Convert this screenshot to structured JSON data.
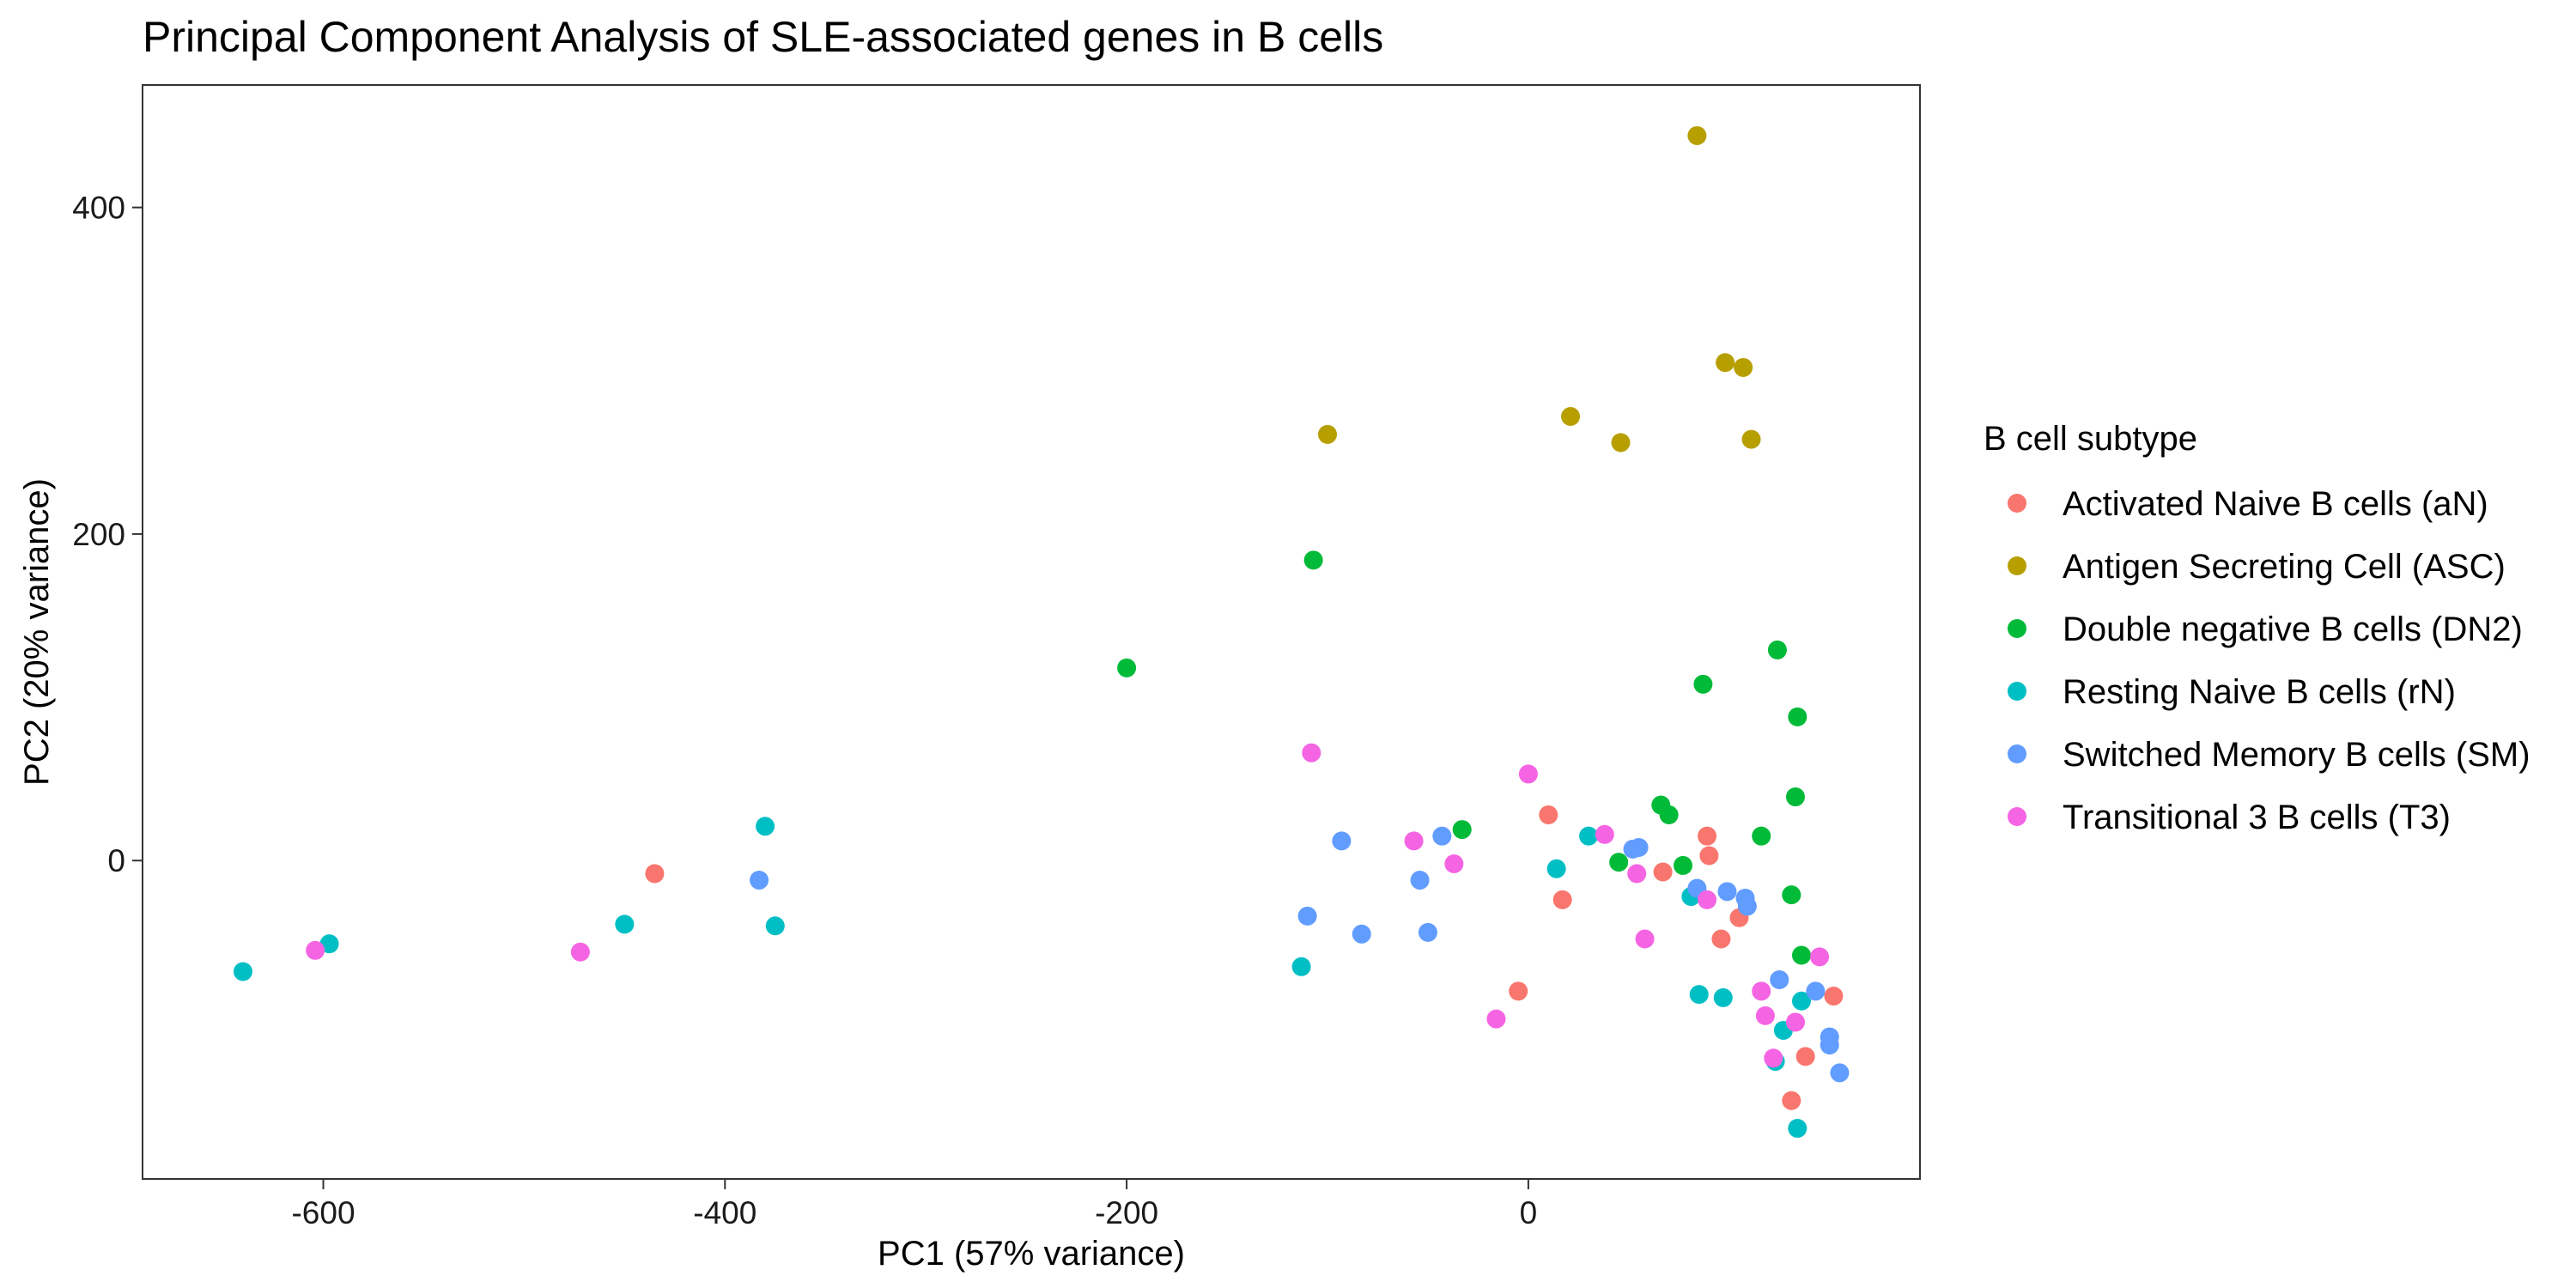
{
  "chart_data": {
    "type": "scatter",
    "title": "Principal Component Analysis of SLE-associated genes in B cells",
    "xlabel": "PC1 (57% variance)",
    "ylabel": "PC2 (20% variance)",
    "xlim": [
      -690,
      195
    ],
    "ylim": [
      -195,
      475
    ],
    "xticks": [
      -600,
      -400,
      -200,
      0
    ],
    "yticks": [
      0,
      200,
      400
    ],
    "grid": false,
    "legend": {
      "title": "B cell subtype",
      "placement": "right"
    },
    "series": [
      {
        "name": "Activated Naive B cells (aN)",
        "color": "#F8766D",
        "points": [
          {
            "x": -435,
            "y": -8
          },
          {
            "x": 10,
            "y": 28
          },
          {
            "x": 17,
            "y": -24
          },
          {
            "x": -5,
            "y": -80
          },
          {
            "x": 67,
            "y": -7
          },
          {
            "x": 89,
            "y": 15
          },
          {
            "x": 90,
            "y": 3
          },
          {
            "x": 96,
            "y": -48
          },
          {
            "x": 105,
            "y": -35
          },
          {
            "x": 131,
            "y": -147
          },
          {
            "x": 138,
            "y": -120
          },
          {
            "x": 152,
            "y": -83
          }
        ]
      },
      {
        "name": "Antigen Secreting Cell (ASC)",
        "color": "#B79F00",
        "points": [
          {
            "x": -100,
            "y": 261
          },
          {
            "x": 21,
            "y": 272
          },
          {
            "x": 46,
            "y": 256
          },
          {
            "x": 84,
            "y": 444
          },
          {
            "x": 98,
            "y": 305
          },
          {
            "x": 107,
            "y": 302
          },
          {
            "x": 111,
            "y": 258
          }
        ]
      },
      {
        "name": "Double negative B cells (DN2)",
        "color": "#00BA38",
        "points": [
          {
            "x": -200,
            "y": 118
          },
          {
            "x": -107,
            "y": 184
          },
          {
            "x": -33,
            "y": 19
          },
          {
            "x": 45,
            "y": -1
          },
          {
            "x": 66,
            "y": 34
          },
          {
            "x": 70,
            "y": 28
          },
          {
            "x": 77,
            "y": -3
          },
          {
            "x": 87,
            "y": 108
          },
          {
            "x": 116,
            "y": 15
          },
          {
            "x": 124,
            "y": 129
          },
          {
            "x": 131,
            "y": -21
          },
          {
            "x": 133,
            "y": 39
          },
          {
            "x": 134,
            "y": 88
          },
          {
            "x": 136,
            "y": -58
          }
        ]
      },
      {
        "name": "Resting Naive B cells (rN)",
        "color": "#00BFC4",
        "points": [
          {
            "x": -640,
            "y": -68
          },
          {
            "x": -597,
            "y": -51
          },
          {
            "x": -450,
            "y": -39
          },
          {
            "x": -380,
            "y": 21
          },
          {
            "x": -375,
            "y": -40
          },
          {
            "x": -113,
            "y": -65
          },
          {
            "x": 14,
            "y": -5
          },
          {
            "x": 30,
            "y": 15
          },
          {
            "x": 81,
            "y": -22
          },
          {
            "x": 85,
            "y": -82
          },
          {
            "x": 97,
            "y": -84
          },
          {
            "x": 127,
            "y": -104
          },
          {
            "x": 123,
            "y": -123
          },
          {
            "x": 136,
            "y": -86
          },
          {
            "x": 134,
            "y": -164
          }
        ]
      },
      {
        "name": "Switched Memory B cells (SM)",
        "color": "#619CFF",
        "points": [
          {
            "x": -383,
            "y": -12
          },
          {
            "x": -93,
            "y": 12
          },
          {
            "x": -110,
            "y": -34
          },
          {
            "x": -83,
            "y": -45
          },
          {
            "x": -54,
            "y": -12
          },
          {
            "x": -50,
            "y": -44
          },
          {
            "x": -43,
            "y": 15
          },
          {
            "x": 52,
            "y": 7
          },
          {
            "x": 55,
            "y": 8
          },
          {
            "x": 84,
            "y": -17
          },
          {
            "x": 99,
            "y": -19
          },
          {
            "x": 108,
            "y": -23
          },
          {
            "x": 109,
            "y": -28
          },
          {
            "x": 125,
            "y": -73
          },
          {
            "x": 143,
            "y": -80
          },
          {
            "x": 150,
            "y": -108
          },
          {
            "x": 150,
            "y": -113
          },
          {
            "x": 155,
            "y": -130
          }
        ]
      },
      {
        "name": "Transitional 3 B cells (T3)",
        "color": "#F564E3",
        "points": [
          {
            "x": -604,
            "y": -55
          },
          {
            "x": -472,
            "y": -56
          },
          {
            "x": -108,
            "y": 66
          },
          {
            "x": -57,
            "y": 12
          },
          {
            "x": -37,
            "y": -2
          },
          {
            "x": -16,
            "y": -97
          },
          {
            "x": 0,
            "y": 53
          },
          {
            "x": 38,
            "y": 16
          },
          {
            "x": 54,
            "y": -8
          },
          {
            "x": 58,
            "y": -48
          },
          {
            "x": 89,
            "y": -24
          },
          {
            "x": 116,
            "y": -80
          },
          {
            "x": 118,
            "y": -95
          },
          {
            "x": 122,
            "y": -121
          },
          {
            "x": 133,
            "y": -99
          },
          {
            "x": 145,
            "y": -59
          }
        ]
      }
    ]
  }
}
